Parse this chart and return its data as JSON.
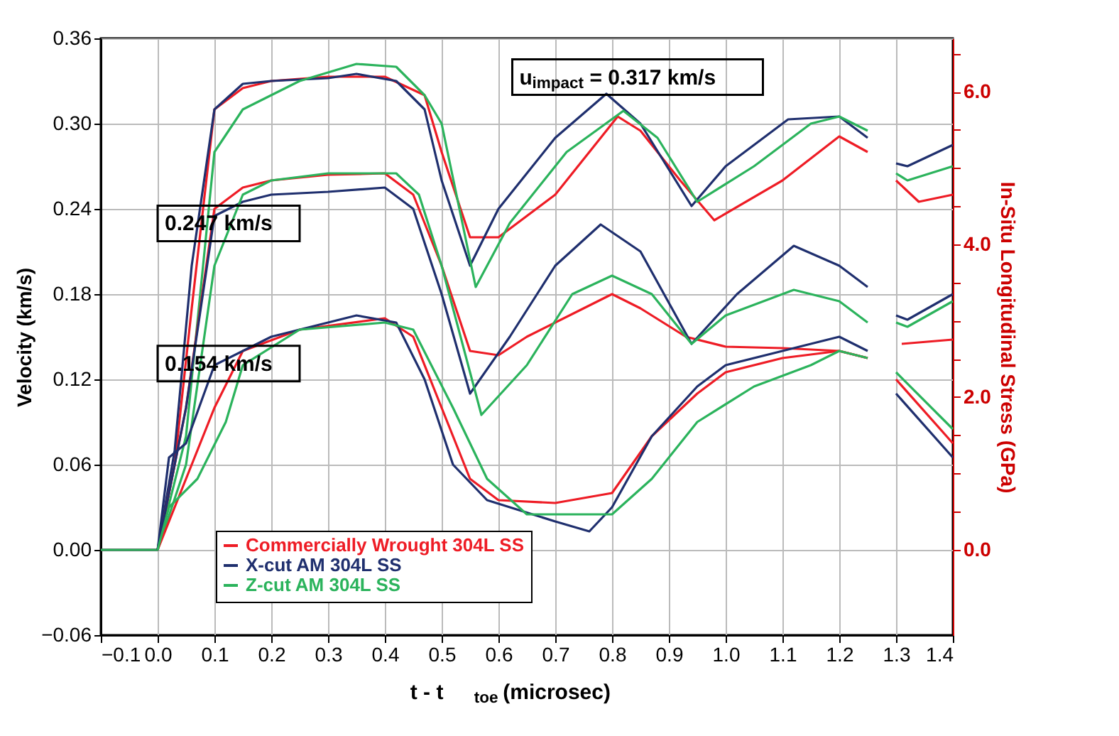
{
  "chart_data": {
    "type": "line",
    "xlabel": "t - t$_{toe}$ (microsec)",
    "ylabel": "Velocity (km/s)",
    "y2label": "In-Situ Longitudinal Stress (GPa)",
    "xlim": [
      -0.1,
      1.4
    ],
    "xticks": [
      -0.1,
      {
        "value": 0,
        "label": "0.0"
      },
      0.1,
      0.2,
      0.3,
      0.4,
      0.5,
      0.6,
      0.7,
      0.8,
      0.9,
      {
        "value": 1,
        "label": "1.0"
      },
      1.1,
      1.2,
      1.3,
      1.4
    ],
    "ylim": [
      -0.06,
      0.36
    ],
    "yticks": [
      -0.06,
      {
        "value": 0,
        "label": "0.00"
      },
      0.06,
      0.12,
      0.18,
      0.24,
      {
        "value": 0.3,
        "label": "0.30"
      },
      0.36
    ],
    "y2lim": [
      -1.12,
      6.7
    ],
    "y2ticks": [
      {
        "value": 0,
        "label": "0.0"
      },
      {
        "value": 0.5,
        "label": null
      },
      {
        "value": 1,
        "label": null
      },
      {
        "value": 1.5,
        "label": null
      },
      {
        "value": 2,
        "label": "2.0"
      },
      {
        "value": 2.5,
        "label": null
      },
      {
        "value": 3,
        "label": null
      },
      {
        "value": 3.5,
        "label": null
      },
      {
        "value": 4,
        "label": "4.0"
      },
      {
        "value": 4.5,
        "label": null
      },
      {
        "value": 5,
        "label": null
      },
      {
        "value": 5.5,
        "label": null
      },
      {
        "value": 6,
        "label": "6.0"
      },
      {
        "value": 6.5,
        "label": null
      }
    ],
    "grid": true,
    "legend": "bottom left",
    "marker": "none",
    "line_style": "solid",
    "annotations": [
      "u$_{impact}$ = 0.317 km/s",
      "0.247 km/s",
      "0.154 km/s"
    ],
    "series": [
      {
        "name": "Commercially Wrought 304L SS",
        "color": "#ee1c25",
        "x": [
          -0.1,
          0,
          0.03,
          0.06,
          0.1,
          0.15,
          0.2,
          0.3,
          0.4,
          0.47,
          0.5,
          0.55,
          0.6,
          0.7,
          0.81,
          0.85,
          0.92,
          0.98,
          1.1,
          1.2,
          1.25
        ],
        "values": [
          0,
          0,
          0.06,
          0.17,
          0.31,
          0.325,
          0.33,
          0.333,
          0.333,
          0.32,
          0.28,
          0.22,
          0.22,
          0.25,
          0.305,
          0.295,
          0.26,
          0.232,
          0.26,
          0.291,
          0.28
        ]
      },
      {
        "name": "X-cut AM 304L SS",
        "color": "#1f2f6e",
        "x": [
          -0.1,
          0,
          0.03,
          0.06,
          0.1,
          0.15,
          0.2,
          0.3,
          0.35,
          0.42,
          0.47,
          0.5,
          0.55,
          0.6,
          0.7,
          0.79,
          0.85,
          0.94,
          1.0,
          1.11,
          1.2,
          1.25
        ],
        "values": [
          0,
          0,
          0.07,
          0.2,
          0.31,
          0.328,
          0.33,
          0.332,
          0.335,
          0.33,
          0.31,
          0.26,
          0.2,
          0.24,
          0.29,
          0.321,
          0.3,
          0.242,
          0.27,
          0.303,
          0.305,
          0.29
        ]
      },
      {
        "name": "Z-cut AM 304L SS",
        "color": "#2bb35c",
        "x": [
          -0.1,
          0,
          0.05,
          0.1,
          0.15,
          0.25,
          0.35,
          0.42,
          0.47,
          0.5,
          0.56,
          0.62,
          0.72,
          0.82,
          0.88,
          0.95,
          1.05,
          1.15,
          1.2,
          1.25
        ],
        "values": [
          0,
          0,
          0.08,
          0.28,
          0.31,
          0.33,
          0.342,
          0.34,
          0.32,
          0.3,
          0.185,
          0.23,
          0.28,
          0.309,
          0.29,
          0.245,
          0.27,
          0.3,
          0.305,
          0.295
        ]
      },
      {
        "color": "#ee1c25",
        "x": [
          0,
          0.05,
          0.1,
          0.15,
          0.2,
          0.3,
          0.4,
          0.45,
          0.5,
          0.55,
          0.6,
          0.65,
          0.75,
          0.8,
          0.85,
          0.93,
          1.0,
          1.1,
          1.2,
          1.25
        ],
        "values": [
          0,
          0.1,
          0.24,
          0.255,
          0.26,
          0.264,
          0.265,
          0.25,
          0.2,
          0.14,
          0.137,
          0.15,
          0.17,
          0.18,
          0.17,
          0.15,
          0.143,
          0.142,
          0.14,
          0.135
        ]
      },
      {
        "color": "#1f2f6e",
        "x": [
          0,
          0.05,
          0.1,
          0.15,
          0.2,
          0.3,
          0.4,
          0.45,
          0.5,
          0.55,
          0.62,
          0.7,
          0.78,
          0.85,
          0.94,
          1.02,
          1.12,
          1.2,
          1.25
        ],
        "values": [
          0,
          0.1,
          0.235,
          0.245,
          0.25,
          0.252,
          0.255,
          0.24,
          0.18,
          0.11,
          0.15,
          0.2,
          0.229,
          0.21,
          0.145,
          0.18,
          0.214,
          0.2,
          0.185
        ]
      },
      {
        "color": "#2bb35c",
        "x": [
          0,
          0.05,
          0.1,
          0.15,
          0.2,
          0.3,
          0.42,
          0.46,
          0.5,
          0.57,
          0.65,
          0.73,
          0.8,
          0.87,
          0.94,
          1.0,
          1.12,
          1.2,
          1.25
        ],
        "values": [
          0,
          0.06,
          0.2,
          0.25,
          0.26,
          0.265,
          0.265,
          0.25,
          0.2,
          0.095,
          0.13,
          0.18,
          0.193,
          0.18,
          0.145,
          0.165,
          0.183,
          0.175,
          0.16
        ]
      },
      {
        "color": "#ee1c25",
        "x": [
          0,
          0.02,
          0.05,
          0.1,
          0.15,
          0.25,
          0.4,
          0.45,
          0.5,
          0.55,
          0.6,
          0.7,
          0.8,
          0.87,
          0.95,
          1.0,
          1.1,
          1.2,
          1.25
        ],
        "values": [
          0,
          0.02,
          0.05,
          0.1,
          0.14,
          0.155,
          0.163,
          0.15,
          0.1,
          0.05,
          0.035,
          0.033,
          0.04,
          0.08,
          0.11,
          0.125,
          0.135,
          0.14,
          0.135
        ]
      },
      {
        "color": "#1f2f6e",
        "x": [
          0,
          0.02,
          0.05,
          0.1,
          0.2,
          0.35,
          0.42,
          0.47,
          0.52,
          0.58,
          0.7,
          0.76,
          0.8,
          0.87,
          0.95,
          1.0,
          1.1,
          1.2,
          1.25
        ],
        "values": [
          0,
          0.065,
          0.075,
          0.13,
          0.15,
          0.165,
          0.16,
          0.12,
          0.06,
          0.035,
          0.02,
          0.013,
          0.03,
          0.08,
          0.115,
          0.13,
          0.14,
          0.15,
          0.14
        ]
      },
      {
        "color": "#2bb35c",
        "x": [
          0,
          0.02,
          0.07,
          0.12,
          0.15,
          0.25,
          0.4,
          0.45,
          0.52,
          0.58,
          0.65,
          0.8,
          0.87,
          0.95,
          1.05,
          1.15,
          1.2,
          1.25
        ],
        "values": [
          0,
          0.03,
          0.05,
          0.09,
          0.13,
          0.155,
          0.16,
          0.155,
          0.1,
          0.05,
          0.025,
          0.025,
          0.05,
          0.09,
          0.115,
          0.13,
          0.14,
          0.135
        ]
      },
      {
        "color": "#1f2f6e",
        "x": [
          1.3,
          1.32,
          1.4
        ],
        "values": [
          0.272,
          0.27,
          0.285
        ]
      },
      {
        "color": "#2bb35c",
        "x": [
          1.3,
          1.32,
          1.4
        ],
        "values": [
          0.265,
          0.26,
          0.27
        ]
      },
      {
        "color": "#ee1c25",
        "x": [
          1.3,
          1.34,
          1.4
        ],
        "values": [
          0.26,
          0.245,
          0.25
        ]
      },
      {
        "color": "#1f2f6e",
        "x": [
          1.3,
          1.32,
          1.4
        ],
        "values": [
          0.165,
          0.162,
          0.18
        ]
      },
      {
        "color": "#2bb35c",
        "x": [
          1.3,
          1.32,
          1.4
        ],
        "values": [
          0.16,
          0.157,
          0.175
        ]
      },
      {
        "color": "#ee1c25",
        "x": [
          1.31,
          1.4
        ],
        "values": [
          0.145,
          0.148
        ]
      },
      {
        "color": "#1f2f6e",
        "x": [
          1.3,
          1.4
        ],
        "values": [
          0.11,
          0.065
        ]
      },
      {
        "color": "#ee1c25",
        "x": [
          1.3,
          1.4
        ],
        "values": [
          0.12,
          0.075
        ]
      },
      {
        "color": "#2bb35c",
        "x": [
          1.3,
          1.4
        ],
        "values": [
          0.125,
          0.085
        ]
      }
    ]
  }
}
